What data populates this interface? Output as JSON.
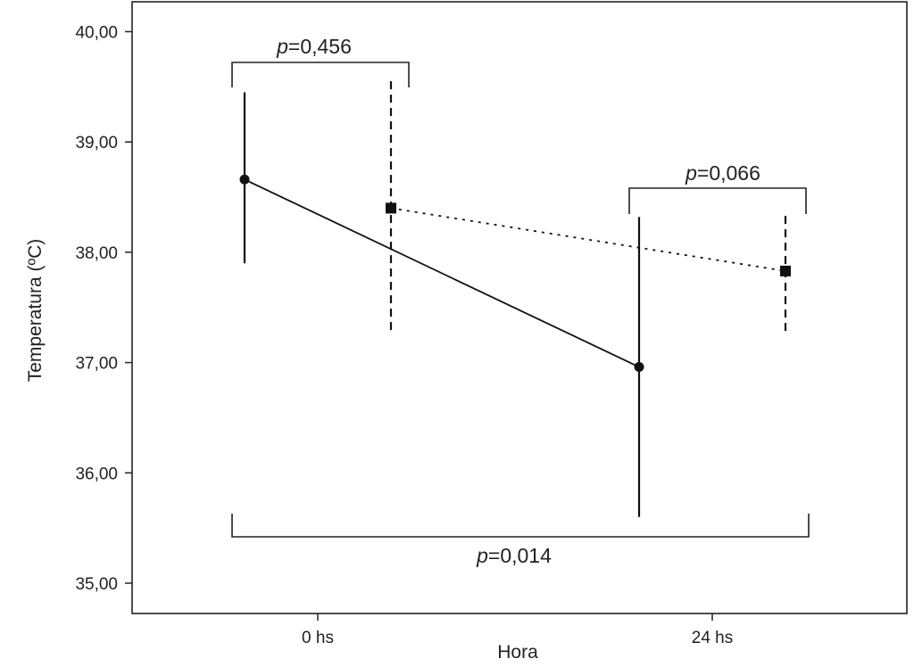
{
  "chart_data": {
    "type": "line",
    "xlabel": "Hora",
    "ylabel": "Temperatura (ºC)",
    "categories": [
      "0 hs",
      "24 hs"
    ],
    "ylim": [
      35.0,
      40.0
    ],
    "yticks": [
      "35,00",
      "36,00",
      "37,00",
      "38,00",
      "39,00",
      "40,00"
    ],
    "grid": false,
    "series": [
      {
        "line_style": "solid",
        "marker": "circle",
        "values": [
          38.66,
          36.96
        ],
        "error_low": [
          37.9,
          35.6
        ],
        "error_high": [
          39.45,
          38.32
        ]
      },
      {
        "line_style": "dotted",
        "marker": "square",
        "error_style": "dashed",
        "values": [
          38.4,
          37.83
        ],
        "error_low": [
          37.25,
          37.25
        ],
        "error_high": [
          39.55,
          38.33
        ]
      }
    ],
    "annotations": [
      {
        "prefix": "p",
        "text": "=0,456"
      },
      {
        "prefix": "p",
        "text": "=0,066"
      },
      {
        "prefix": "p",
        "text": "=0,014"
      }
    ]
  }
}
